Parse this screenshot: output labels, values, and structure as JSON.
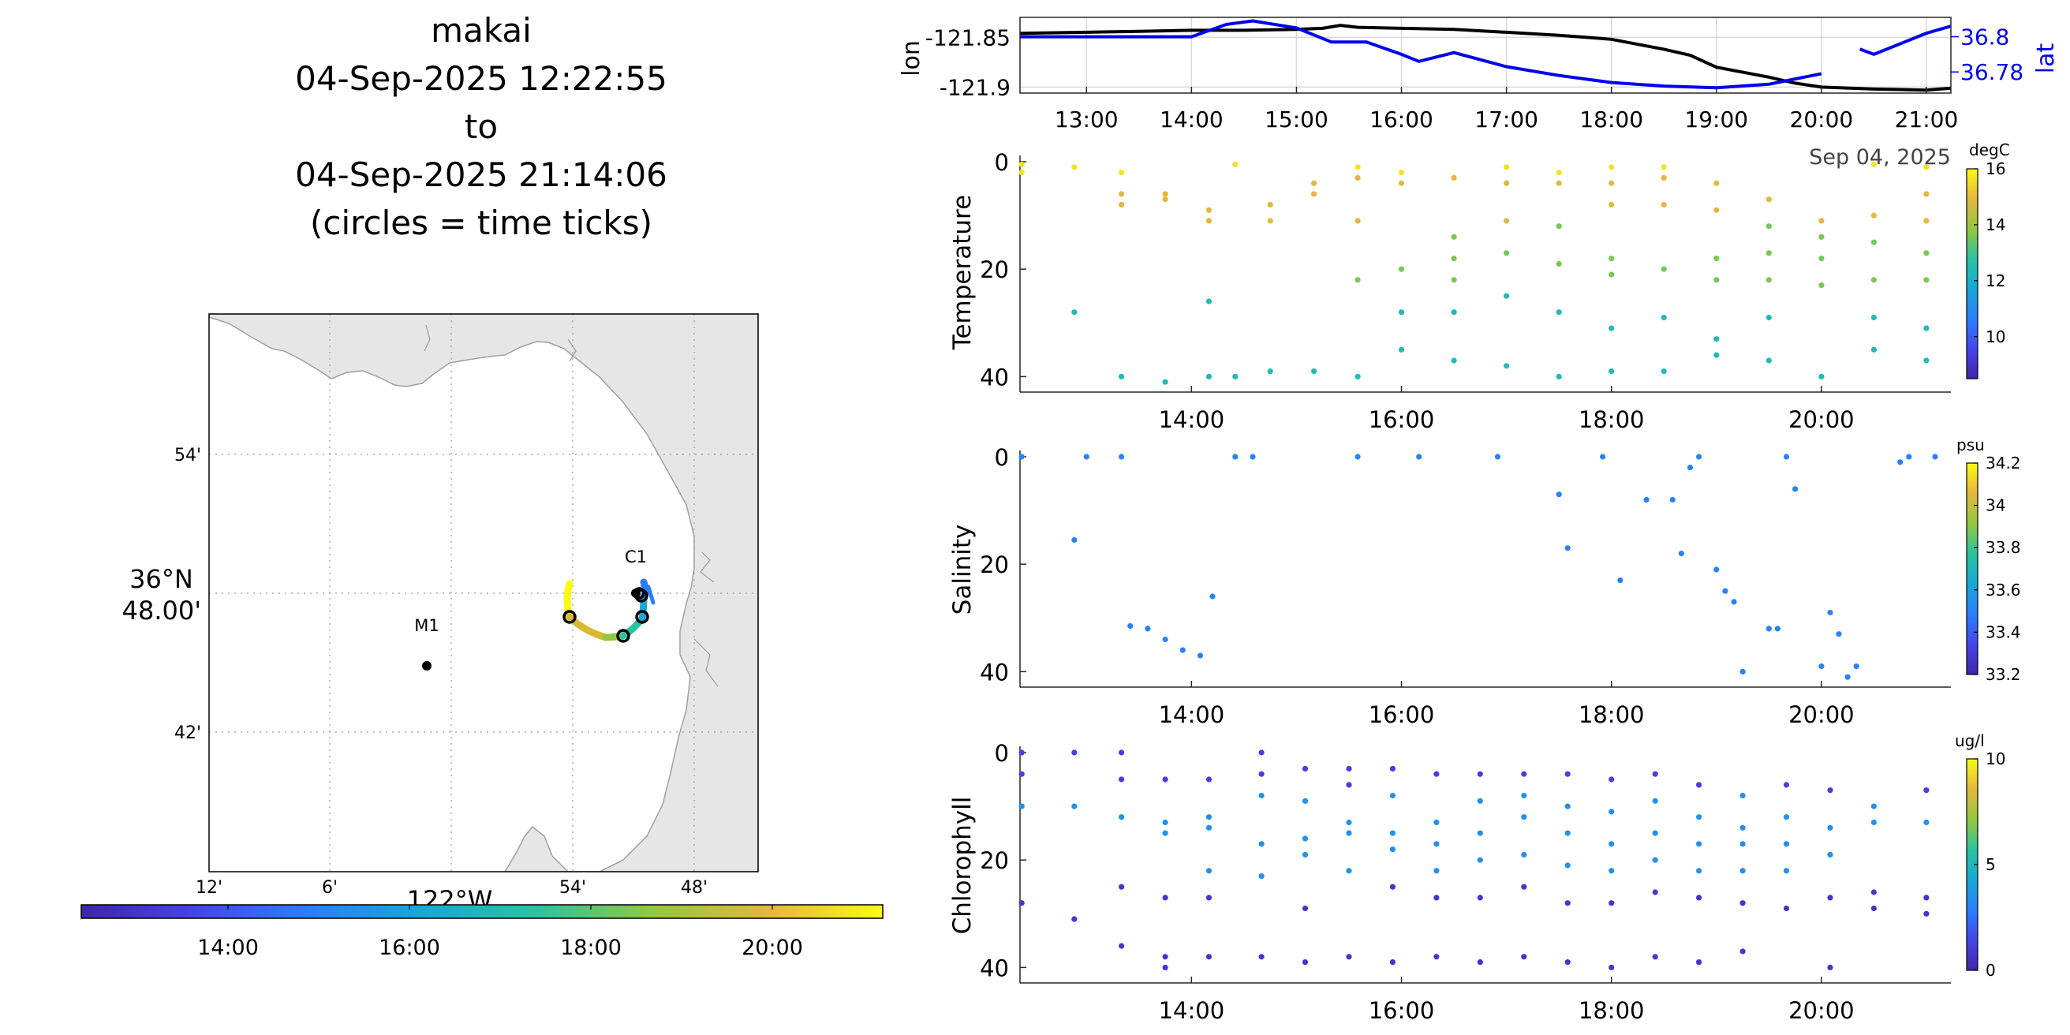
{
  "title": {
    "line1": "makai",
    "line2": "04-Sep-2025 12:22:55",
    "line3": "to",
    "line4": "04-Sep-2025 21:14:06",
    "line5": "(circles = time ticks)"
  },
  "colors": {
    "axis": "#262626",
    "grid": "#cccccc",
    "land": "#e6e6e6",
    "lon_line": "#000000",
    "lat_line": "#0000ee",
    "parula": [
      "#3e26a8",
      "#4743ea",
      "#2c7dfc",
      "#16a9d6",
      "#2cc3a0",
      "#90c840",
      "#e6b73e",
      "#f9fb15"
    ]
  },
  "map": {
    "lat_labels": [
      "54'",
      "36°N\n48.00'",
      "42'"
    ],
    "lon_labels": [
      "12'",
      "6'",
      "54'",
      "48'"
    ],
    "lon_axis_title": "122°W",
    "stations": [
      {
        "name": "M1",
        "lat": 36.747,
        "lon": -122.022
      },
      {
        "name": "C1",
        "lat": 36.798,
        "lon": -121.848
      }
    ],
    "time_colorbar_ticks": [
      "14:00",
      "16:00",
      "18:00",
      "20:00"
    ]
  },
  "chart_data": [
    {
      "type": "line",
      "title": "",
      "xlabel": "",
      "ylabel": "lon",
      "ylabel_right": "lat",
      "x_ticks": [
        "13:00",
        "14:00",
        "15:00",
        "16:00",
        "17:00",
        "18:00",
        "19:00",
        "20:00",
        "21:00"
      ],
      "x_date_label": "Sep 04, 2025",
      "xlim": [
        "12:22",
        "21:14"
      ],
      "y_ticks_left": [
        "-121.85",
        "-121.9"
      ],
      "y_ticks_right": [
        "36.8",
        "36.78"
      ],
      "ylim_left": [
        -121.906,
        -121.83
      ],
      "ylim_right": [
        36.768,
        36.811
      ],
      "series": [
        {
          "name": "lon",
          "axis": "left",
          "x": [
            "12:22",
            "13:00",
            "13:30",
            "14:00",
            "14:30",
            "15:00",
            "15:15",
            "15:25",
            "15:35",
            "16:00",
            "16:30",
            "17:00",
            "17:30",
            "18:00",
            "18:30",
            "18:45",
            "19:00",
            "19:30",
            "19:45",
            "20:00",
            "20:30",
            "21:00",
            "21:14"
          ],
          "y": [
            -121.846,
            -121.845,
            -121.844,
            -121.843,
            -121.843,
            -121.842,
            -121.841,
            -121.838,
            -121.84,
            -121.841,
            -121.842,
            -121.845,
            -121.848,
            -121.852,
            -121.862,
            -121.868,
            -121.88,
            -121.89,
            -121.896,
            -121.9,
            -121.902,
            -121.903,
            -121.901
          ]
        },
        {
          "name": "lat",
          "axis": "right",
          "x": [
            "12:22",
            "13:00",
            "14:00",
            "14:20",
            "14:35",
            "15:00",
            "15:20",
            "15:40",
            "16:00",
            "16:10",
            "16:30",
            "17:00",
            "17:30",
            "18:00",
            "18:30",
            "19:00",
            "19:30",
            "20:00"
          ],
          "y": [
            36.8,
            36.8,
            36.8,
            36.807,
            36.809,
            36.805,
            36.797,
            36.797,
            36.79,
            36.786,
            36.791,
            36.783,
            36.778,
            36.774,
            36.772,
            36.771,
            36.773,
            36.779
          ]
        },
        {
          "name": "lat",
          "axis": "right",
          "x": [
            "20:22",
            "20:30",
            "21:00",
            "21:14"
          ],
          "y": [
            36.793,
            36.79,
            36.802,
            36.806
          ]
        }
      ]
    },
    {
      "type": "scatter",
      "ylabel": "Temperature",
      "colorbar_label": "degC",
      "colorbar_ticks": [
        "16",
        "14",
        "12",
        "10"
      ],
      "clim": [
        8.5,
        16
      ],
      "x_ticks": [
        "14:00",
        "16:00",
        "18:00",
        "20:00"
      ],
      "y_ticks": [
        "0",
        "20",
        "40"
      ],
      "ylim": [
        42,
        0
      ],
      "columns": [
        {
          "t": "12:23",
          "d": [
            0.5,
            2
          ]
        },
        {
          "t": "12:53",
          "d": [
            1,
            28
          ]
        },
        {
          "t": "13:20",
          "d": [
            2,
            6,
            8,
            40
          ]
        },
        {
          "t": "13:45",
          "d": [
            6,
            7,
            41
          ]
        },
        {
          "t": "14:10",
          "d": [
            9,
            11,
            26,
            40
          ]
        },
        {
          "t": "14:25",
          "d": [
            0.5,
            40
          ]
        },
        {
          "t": "14:45",
          "d": [
            8,
            11,
            39
          ]
        },
        {
          "t": "15:10",
          "d": [
            4,
            6,
            39
          ]
        },
        {
          "t": "15:35",
          "d": [
            1,
            3,
            11,
            22,
            40
          ]
        },
        {
          "t": "16:00",
          "d": [
            2,
            4,
            20,
            28,
            35
          ]
        },
        {
          "t": "16:30",
          "d": [
            3,
            14,
            18,
            22,
            28,
            37
          ]
        },
        {
          "t": "17:00",
          "d": [
            1,
            4,
            11,
            17,
            25,
            38
          ]
        },
        {
          "t": "17:30",
          "d": [
            2,
            4,
            12,
            19,
            28,
            40
          ]
        },
        {
          "t": "18:00",
          "d": [
            1,
            4,
            8,
            18,
            21,
            31,
            39
          ]
        },
        {
          "t": "18:30",
          "d": [
            1,
            3,
            8,
            20,
            29,
            39
          ]
        },
        {
          "t": "19:00",
          "d": [
            4,
            9,
            18,
            22,
            33,
            36
          ]
        },
        {
          "t": "19:30",
          "d": [
            7,
            12,
            17,
            22,
            29,
            37
          ]
        },
        {
          "t": "20:00",
          "d": [
            11,
            14,
            18,
            23,
            40
          ]
        },
        {
          "t": "20:30",
          "d": [
            0.5,
            10,
            15,
            22,
            29,
            35
          ]
        },
        {
          "t": "21:00",
          "d": [
            1,
            6,
            11,
            17,
            22,
            31,
            37
          ]
        }
      ]
    },
    {
      "type": "scatter",
      "ylabel": "Salinity",
      "colorbar_label": "psu",
      "colorbar_ticks": [
        "34.2",
        "34",
        "33.8",
        "33.6",
        "33.4",
        "33.2"
      ],
      "clim": [
        33.2,
        34.2
      ],
      "x_ticks": [
        "14:00",
        "16:00",
        "18:00",
        "20:00"
      ],
      "y_ticks": [
        "0",
        "20",
        "40"
      ],
      "ylim": [
        42,
        0
      ],
      "points": [
        {
          "t": "12:23",
          "d": 0,
          "v": 33.5
        },
        {
          "t": "12:53",
          "d": 15.5,
          "v": 33.5
        },
        {
          "t": "13:00",
          "d": 0,
          "v": 33.5
        },
        {
          "t": "13:20",
          "d": 0,
          "v": 33.5
        },
        {
          "t": "13:25",
          "d": 31.5,
          "v": 33.5
        },
        {
          "t": "13:35",
          "d": 32,
          "v": 33.5
        },
        {
          "t": "13:45",
          "d": 34,
          "v": 33.5
        },
        {
          "t": "13:55",
          "d": 36,
          "v": 33.5
        },
        {
          "t": "14:05",
          "d": 37,
          "v": 33.5
        },
        {
          "t": "14:12",
          "d": 26,
          "v": 33.5
        },
        {
          "t": "14:25",
          "d": 0,
          "v": 33.5
        },
        {
          "t": "14:35",
          "d": 0,
          "v": 33.5
        },
        {
          "t": "15:35",
          "d": 0,
          "v": 33.5
        },
        {
          "t": "16:10",
          "d": 0,
          "v": 33.5
        },
        {
          "t": "16:55",
          "d": 0,
          "v": 33.5
        },
        {
          "t": "17:30",
          "d": 7,
          "v": 33.5
        },
        {
          "t": "17:35",
          "d": 17,
          "v": 33.5
        },
        {
          "t": "17:55",
          "d": 0,
          "v": 33.5
        },
        {
          "t": "18:05",
          "d": 23,
          "v": 33.5
        },
        {
          "t": "18:20",
          "d": 8,
          "v": 33.5
        },
        {
          "t": "18:35",
          "d": 8,
          "v": 33.5
        },
        {
          "t": "18:40",
          "d": 18,
          "v": 33.5
        },
        {
          "t": "18:45",
          "d": 2,
          "v": 33.5
        },
        {
          "t": "18:50",
          "d": 0,
          "v": 33.5
        },
        {
          "t": "19:00",
          "d": 21,
          "v": 33.5
        },
        {
          "t": "19:05",
          "d": 25,
          "v": 33.5
        },
        {
          "t": "19:10",
          "d": 27,
          "v": 33.5
        },
        {
          "t": "19:15",
          "d": 40,
          "v": 33.5
        },
        {
          "t": "19:30",
          "d": 32,
          "v": 33.5
        },
        {
          "t": "19:35",
          "d": 32,
          "v": 33.5
        },
        {
          "t": "19:40",
          "d": 0,
          "v": 33.5
        },
        {
          "t": "19:45",
          "d": 6,
          "v": 33.5
        },
        {
          "t": "20:00",
          "d": 39,
          "v": 33.5
        },
        {
          "t": "20:05",
          "d": 29,
          "v": 33.5
        },
        {
          "t": "20:10",
          "d": 33,
          "v": 33.5
        },
        {
          "t": "20:15",
          "d": 41,
          "v": 33.5
        },
        {
          "t": "20:20",
          "d": 39,
          "v": 33.5
        },
        {
          "t": "20:45",
          "d": 1,
          "v": 33.5
        },
        {
          "t": "20:50",
          "d": 0,
          "v": 33.5
        },
        {
          "t": "21:05",
          "d": 0,
          "v": 33.5
        }
      ]
    },
    {
      "type": "scatter",
      "ylabel": "Chlorophyll",
      "colorbar_label": "ug/l",
      "colorbar_ticks": [
        "10",
        "5",
        "0"
      ],
      "clim": [
        0,
        10
      ],
      "x_ticks": [
        "14:00",
        "16:00",
        "18:00",
        "20:00"
      ],
      "y_ticks": [
        "0",
        "20",
        "40"
      ],
      "ylim": [
        42,
        0
      ],
      "columns": [
        {
          "t": "12:23",
          "d": [
            0,
            4,
            10,
            28
          ]
        },
        {
          "t": "12:53",
          "d": [
            0,
            10,
            31
          ]
        },
        {
          "t": "13:20",
          "d": [
            0,
            5,
            12,
            25,
            36
          ]
        },
        {
          "t": "13:45",
          "d": [
            5,
            13,
            15,
            27,
            38,
            40
          ]
        },
        {
          "t": "14:10",
          "d": [
            5,
            12,
            14,
            22,
            27,
            38
          ]
        },
        {
          "t": "14:40",
          "d": [
            0,
            4,
            8,
            17,
            23,
            38
          ]
        },
        {
          "t": "15:05",
          "d": [
            3,
            9,
            16,
            19,
            29,
            39
          ]
        },
        {
          "t": "15:30",
          "d": [
            3,
            6,
            13,
            15,
            22,
            38
          ]
        },
        {
          "t": "15:55",
          "d": [
            3,
            8,
            15,
            18,
            25,
            39
          ]
        },
        {
          "t": "16:20",
          "d": [
            4,
            13,
            17,
            22,
            27,
            38
          ]
        },
        {
          "t": "16:45",
          "d": [
            4,
            9,
            15,
            20,
            27,
            39
          ]
        },
        {
          "t": "17:10",
          "d": [
            4,
            8,
            12,
            19,
            25,
            38
          ]
        },
        {
          "t": "17:35",
          "d": [
            4,
            10,
            15,
            21,
            28,
            39
          ]
        },
        {
          "t": "18:00",
          "d": [
            5,
            11,
            17,
            22,
            28,
            40
          ]
        },
        {
          "t": "18:25",
          "d": [
            4,
            9,
            15,
            20,
            26,
            38
          ]
        },
        {
          "t": "18:50",
          "d": [
            6,
            12,
            17,
            22,
            27,
            39
          ]
        },
        {
          "t": "19:15",
          "d": [
            8,
            14,
            17,
            22,
            28,
            37
          ]
        },
        {
          "t": "19:40",
          "d": [
            6,
            12,
            17,
            22,
            29
          ]
        },
        {
          "t": "20:05",
          "d": [
            7,
            14,
            19,
            27,
            40
          ]
        },
        {
          "t": "20:30",
          "d": [
            10,
            13,
            26,
            29
          ]
        },
        {
          "t": "21:00",
          "d": [
            7,
            13,
            27,
            30
          ]
        }
      ]
    }
  ]
}
